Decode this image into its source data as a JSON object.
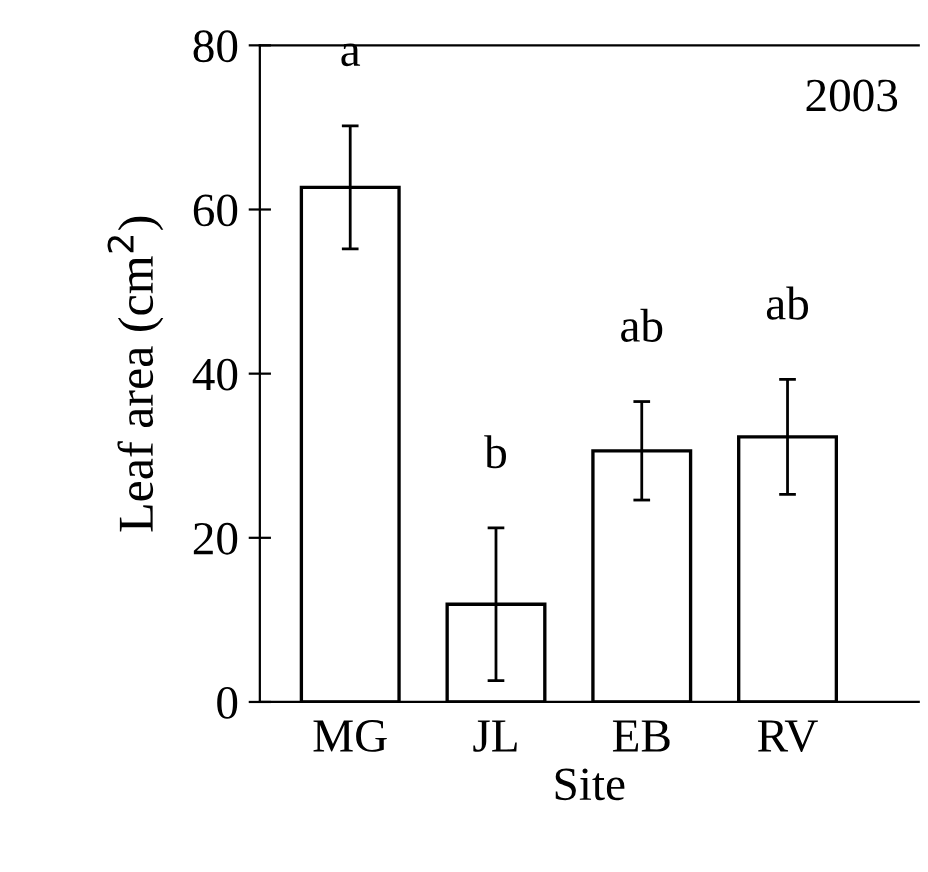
{
  "chart_data": {
    "type": "bar",
    "xlabel": "Site",
    "ylabel": "Leaf area (cm$^{2}$)",
    "categories": [
      "MG",
      "JL",
      "EB",
      "RV"
    ],
    "values": [
      62.7,
      11.9,
      30.6,
      32.3
    ],
    "errors": [
      7.5,
      9.3,
      6.0,
      7.0
    ],
    "color": "#ffffff",
    "ylim": [
      0,
      80
    ],
    "yticks": [
      0,
      20,
      40,
      60,
      80
    ],
    "grid": false,
    "annotations": [
      "2003",
      "a",
      "b",
      "ab",
      "ab"
    ]
  }
}
